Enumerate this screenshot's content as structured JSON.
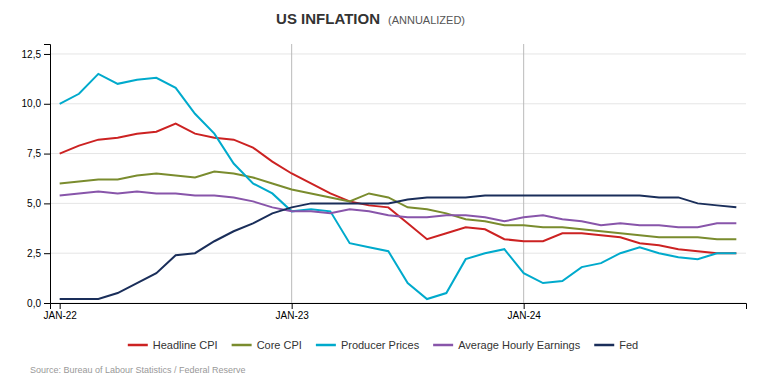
{
  "chart_data": {
    "type": "line",
    "title": "US INFLATION",
    "subtitle": "(ANNUALIZED)",
    "annotations": [
      "Source: Bureau of Labour Statistics / Federal Reserve"
    ],
    "categories": [
      "JAN-22",
      null,
      null,
      null,
      null,
      null,
      null,
      null,
      null,
      null,
      null,
      null,
      "JAN-23",
      null,
      null,
      null,
      null,
      null,
      null,
      null,
      null,
      null,
      null,
      null,
      "JAN-24",
      null,
      null,
      null,
      null,
      null,
      null,
      null,
      null,
      null,
      null,
      null
    ],
    "series": [
      {
        "name": "Headline CPI",
        "color": "#cc2222",
        "values": [
          7.5,
          7.9,
          8.2,
          8.3,
          8.5,
          8.6,
          9.0,
          8.5,
          8.3,
          8.2,
          7.8,
          7.1,
          6.5,
          6.0,
          5.5,
          5.1,
          4.9,
          4.8,
          4.0,
          3.2,
          3.5,
          3.8,
          3.7,
          3.2,
          3.1,
          3.1,
          3.5,
          3.5,
          3.4,
          3.3,
          3.0,
          2.9,
          2.7,
          2.6,
          2.5,
          2.5
        ]
      },
      {
        "name": "Core CPI",
        "color": "#7a8c2e",
        "values": [
          6.0,
          6.1,
          6.2,
          6.2,
          6.4,
          6.5,
          6.4,
          6.3,
          6.6,
          6.5,
          6.3,
          6.0,
          5.7,
          5.5,
          5.3,
          5.1,
          5.5,
          5.3,
          4.8,
          4.7,
          4.5,
          4.2,
          4.1,
          3.9,
          3.9,
          3.8,
          3.8,
          3.7,
          3.6,
          3.5,
          3.4,
          3.3,
          3.3,
          3.3,
          3.2,
          3.2
        ]
      },
      {
        "name": "Producer Prices",
        "color": "#00aacc",
        "values": [
          10.0,
          10.5,
          11.5,
          11.0,
          11.2,
          11.3,
          10.8,
          9.5,
          8.5,
          7.0,
          6.0,
          5.5,
          4.6,
          4.7,
          4.6,
          3.0,
          2.8,
          2.6,
          1.0,
          0.2,
          0.5,
          2.2,
          2.5,
          2.7,
          1.5,
          1.0,
          1.1,
          1.8,
          2.0,
          2.5,
          2.8,
          2.5,
          2.3,
          2.2,
          2.5,
          2.5
        ]
      },
      {
        "name": "Average Hourly Earnings",
        "color": "#8855aa",
        "values": [
          5.4,
          5.5,
          5.6,
          5.5,
          5.6,
          5.5,
          5.5,
          5.4,
          5.4,
          5.3,
          5.1,
          4.8,
          4.6,
          4.6,
          4.5,
          4.7,
          4.6,
          4.4,
          4.3,
          4.3,
          4.4,
          4.4,
          4.3,
          4.1,
          4.3,
          4.4,
          4.2,
          4.1,
          3.9,
          4.0,
          3.9,
          3.9,
          3.8,
          3.8,
          4.0,
          4.0
        ]
      },
      {
        "name": "Fed",
        "color": "#1a2e5a",
        "values": [
          0.2,
          0.2,
          0.2,
          0.5,
          1.0,
          1.5,
          2.4,
          2.5,
          3.1,
          3.6,
          4.0,
          4.5,
          4.8,
          5.0,
          5.0,
          5.0,
          5.0,
          5.0,
          5.2,
          5.3,
          5.3,
          5.3,
          5.4,
          5.4,
          5.4,
          5.4,
          5.4,
          5.4,
          5.4,
          5.4,
          5.4,
          5.3,
          5.3,
          5.0,
          4.9,
          4.8
        ]
      }
    ],
    "ylim": [
      0,
      13
    ],
    "yticks": [
      {
        "value": 0.0,
        "label": "0,0"
      },
      {
        "value": 2.5,
        "label": "2,5"
      },
      {
        "value": 5.0,
        "label": "5,0"
      },
      {
        "value": 7.5,
        "label": "7,5"
      },
      {
        "value": 10.0,
        "label": "10,0"
      },
      {
        "value": 12.5,
        "label": "12,5"
      }
    ],
    "grid": true,
    "legend": "bottom"
  }
}
